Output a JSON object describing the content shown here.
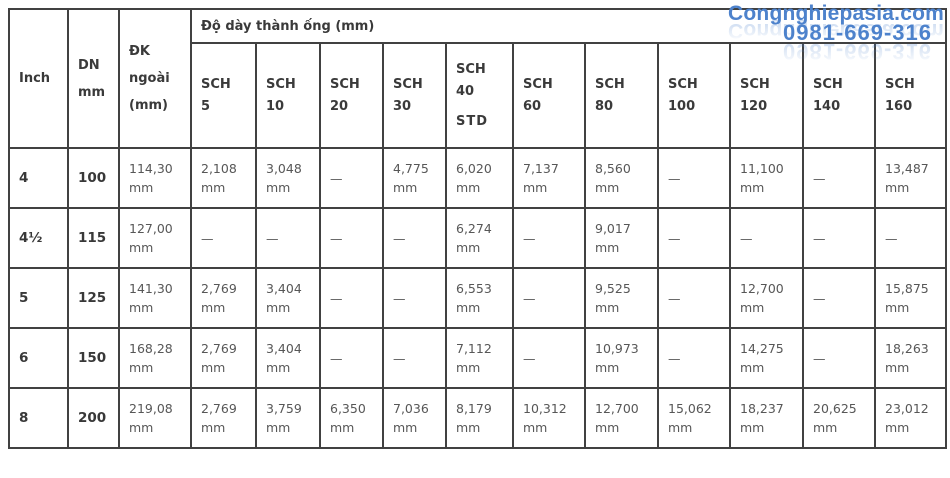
{
  "watermark": {
    "site": "Congnghiepasia.com",
    "phone": "0981-669-316",
    "color": "#4d82cc"
  },
  "table": {
    "group_header": "Độ dày thành ống (mm)",
    "col_headers": {
      "inch": [
        "Inch"
      ],
      "dn": [
        "DN",
        "mm"
      ],
      "od": [
        "ĐK",
        "ngoài",
        "(mm)"
      ]
    },
    "sch_headers": [
      [
        "SCH",
        "5"
      ],
      [
        "SCH",
        "10"
      ],
      [
        "SCH",
        "20"
      ],
      [
        "SCH",
        "30"
      ],
      [
        "SCH",
        "40",
        "STD"
      ],
      [
        "SCH",
        "60"
      ],
      [
        "SCH",
        "80"
      ],
      [
        "SCH",
        "100"
      ],
      [
        "SCH",
        "120"
      ],
      [
        "SCH",
        "140"
      ],
      [
        "SCH",
        "160"
      ]
    ],
    "rows": [
      {
        "inch": "4",
        "dn": "100",
        "od": [
          "114,30",
          "mm"
        ],
        "sch": [
          [
            "2,108",
            "mm"
          ],
          [
            "3,048",
            "mm"
          ],
          [
            "—"
          ],
          [
            "4,775",
            "mm"
          ],
          [
            "6,020",
            "mm"
          ],
          [
            "7,137",
            "mm"
          ],
          [
            "8,560",
            "mm"
          ],
          [
            "—"
          ],
          [
            "11,100",
            "mm"
          ],
          [
            "—"
          ],
          [
            "13,487",
            "mm"
          ]
        ]
      },
      {
        "inch": "4½",
        "dn": "115",
        "od": [
          "127,00",
          "mm"
        ],
        "sch": [
          [
            "—"
          ],
          [
            "—"
          ],
          [
            "—"
          ],
          [
            "—"
          ],
          [
            "6,274",
            "mm"
          ],
          [
            "—"
          ],
          [
            "9,017",
            "mm"
          ],
          [
            "—"
          ],
          [
            "—"
          ],
          [
            "—"
          ],
          [
            "—"
          ]
        ]
      },
      {
        "inch": "5",
        "dn": "125",
        "od": [
          "141,30",
          "mm"
        ],
        "sch": [
          [
            "2,769",
            "mm"
          ],
          [
            "3,404",
            "mm"
          ],
          [
            "—"
          ],
          [
            "—"
          ],
          [
            "6,553",
            "mm"
          ],
          [
            "—"
          ],
          [
            "9,525",
            "mm"
          ],
          [
            "—"
          ],
          [
            "12,700",
            "mm"
          ],
          [
            "—"
          ],
          [
            "15,875",
            "mm"
          ]
        ]
      },
      {
        "inch": "6",
        "dn": "150",
        "od": [
          "168,28",
          "mm"
        ],
        "sch": [
          [
            "2,769",
            "mm"
          ],
          [
            "3,404",
            "mm"
          ],
          [
            "—"
          ],
          [
            "—"
          ],
          [
            "7,112",
            "mm"
          ],
          [
            "—"
          ],
          [
            "10,973",
            "mm"
          ],
          [
            "—"
          ],
          [
            "14,275",
            "mm"
          ],
          [
            "—"
          ],
          [
            "18,263",
            "mm"
          ]
        ]
      },
      {
        "inch": "8",
        "dn": "200",
        "od": [
          "219,08",
          "mm"
        ],
        "sch": [
          [
            "2,769",
            "mm"
          ],
          [
            "3,759",
            "mm"
          ],
          [
            "6,350",
            "mm"
          ],
          [
            "7,036",
            "mm"
          ],
          [
            "8,179",
            "mm"
          ],
          [
            "10,312",
            "mm"
          ],
          [
            "12,700",
            "mm"
          ],
          [
            "15,062",
            "mm"
          ],
          [
            "18,237",
            "mm"
          ],
          [
            "20,625",
            "mm"
          ],
          [
            "23,012",
            "mm"
          ]
        ]
      }
    ]
  }
}
